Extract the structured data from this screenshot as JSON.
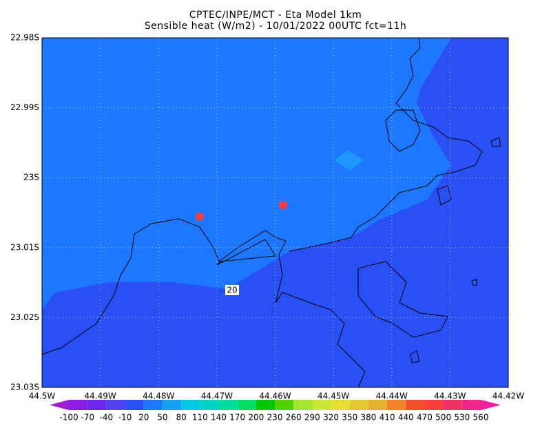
{
  "chart_data": {
    "type": "map",
    "title": "CPTEC/INPE/MCT -  Eta Model 1km",
    "subtitle": "Sensible heat (W/m2) - 10/01/2022 00UTC fct=11h",
    "xlim": [
      -44.5,
      -44.42
    ],
    "ylim": [
      -23.03,
      -22.98
    ],
    "xticks": [
      {
        "value": -44.5,
        "label": "44.5W"
      },
      {
        "value": -44.49,
        "label": "44.49W"
      },
      {
        "value": -44.48,
        "label": "44.48W"
      },
      {
        "value": -44.47,
        "label": "44.47W"
      },
      {
        "value": -44.46,
        "label": "44.46W"
      },
      {
        "value": -44.45,
        "label": "44.45W"
      },
      {
        "value": -44.44,
        "label": "44.44W"
      },
      {
        "value": -44.43,
        "label": "44.43W"
      },
      {
        "value": -44.42,
        "label": "44.42W"
      }
    ],
    "yticks": [
      {
        "value": -22.98,
        "label": "22.98S"
      },
      {
        "value": -22.99,
        "label": "22.99S"
      },
      {
        "value": -23.0,
        "label": "23S"
      },
      {
        "value": -23.01,
        "label": "23.01S"
      },
      {
        "value": -23.02,
        "label": "23.02S"
      },
      {
        "value": -23.03,
        "label": "23.03S"
      }
    ],
    "grid": true,
    "colorbar": {
      "levels": [
        -100,
        -70,
        -40,
        -10,
        20,
        50,
        80,
        110,
        140,
        170,
        200,
        230,
        260,
        290,
        320,
        350,
        380,
        410,
        440,
        470,
        500,
        530,
        560
      ],
      "colors": [
        "#9f1fd0",
        "#8c1ee6",
        "#6e28f0",
        "#5040f0",
        "#2850f5",
        "#1e78ff",
        "#14a0f0",
        "#00c8e6",
        "#00d2c8",
        "#00dca0",
        "#00dc64",
        "#00c800",
        "#50d200",
        "#a0e632",
        "#c8e632",
        "#e6dc32",
        "#e6c832",
        "#e6af2d",
        "#f08228",
        "#f05028",
        "#fa3c3c",
        "#f03264",
        "#f0288c",
        "#f01ea0"
      ]
    },
    "contour_labels": [
      20
    ]
  }
}
